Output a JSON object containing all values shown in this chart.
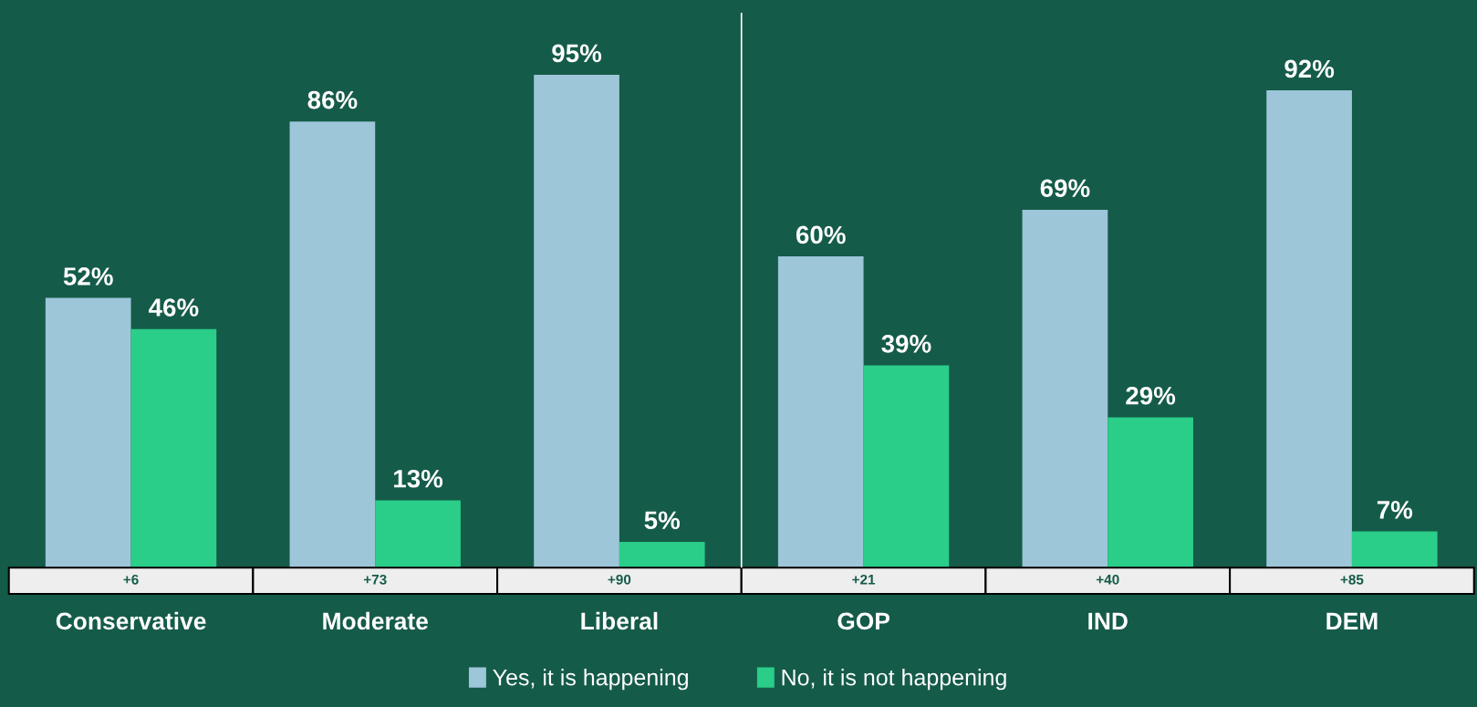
{
  "chart_data": {
    "type": "bar",
    "categories": [
      "Conservative",
      "Moderate",
      "Liberal",
      "GOP",
      "IND",
      "DEM"
    ],
    "series": [
      {
        "name": "Yes, it is happening",
        "color": "#9dc6d9",
        "values": [
          52,
          86,
          95,
          60,
          69,
          92
        ],
        "value_labels": [
          "52%",
          "86%",
          "95%",
          "60%",
          "69%",
          "92%"
        ]
      },
      {
        "name": "No, it is not happening",
        "color": "#2ace89",
        "values": [
          46,
          13,
          5,
          39,
          29,
          7
        ],
        "value_labels": [
          "46%",
          "13%",
          "5%",
          "39%",
          "29%",
          "7%"
        ]
      }
    ],
    "annotations": [
      "+6",
      "+73",
      "+90",
      "+21",
      "+40",
      "+85"
    ],
    "legend": "bottom"
  }
}
